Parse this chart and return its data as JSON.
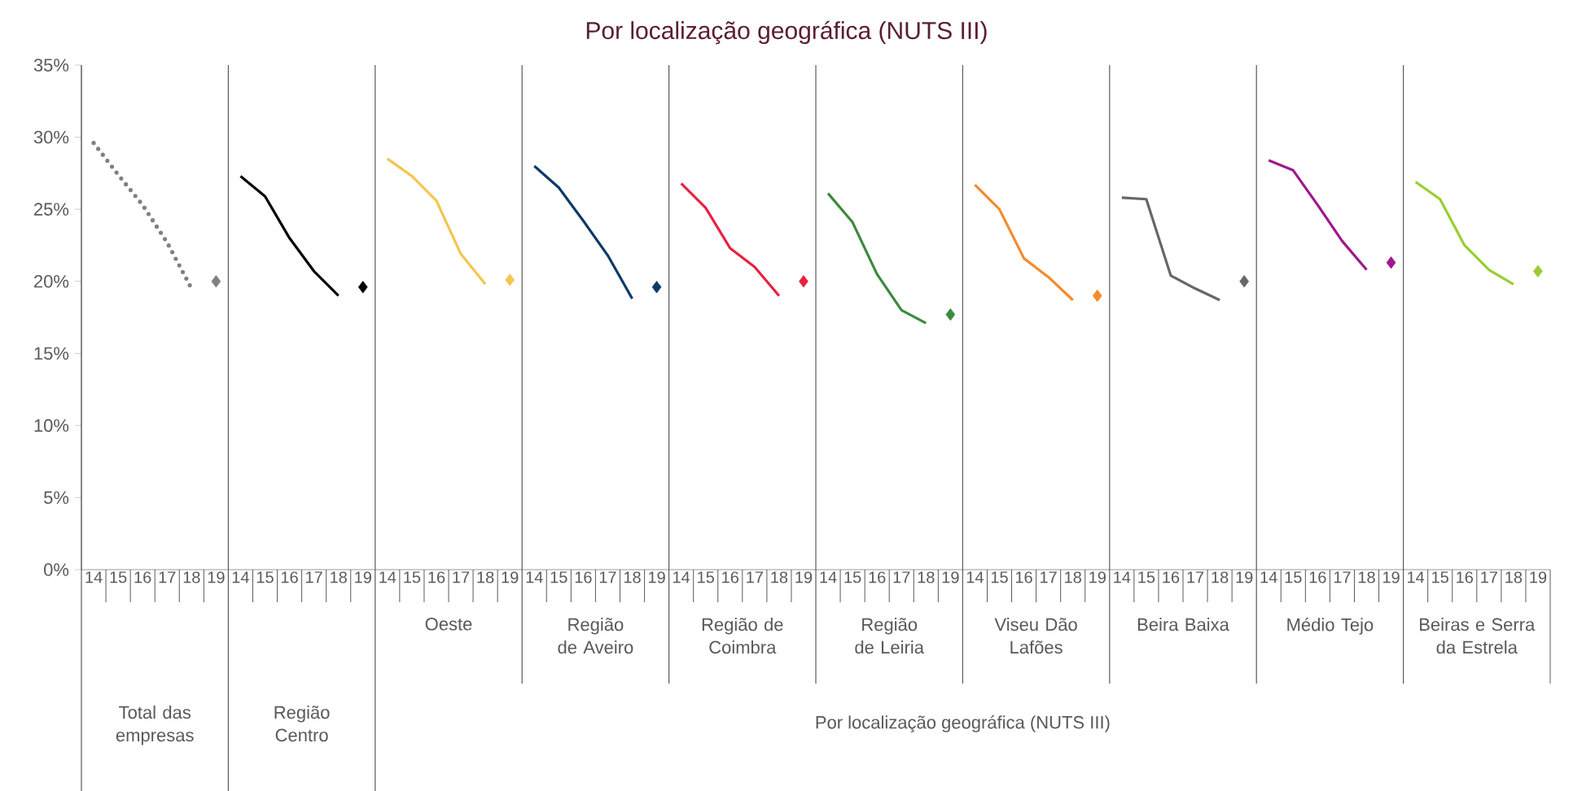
{
  "chart_data": {
    "type": "line",
    "title": "Por localização geográfica (NUTS III)",
    "categories": [
      "14",
      "15",
      "16",
      "17",
      "18",
      "19",
      "14",
      "15",
      "16",
      "17",
      "18",
      "19",
      "14",
      "15",
      "16",
      "17",
      "18",
      "19",
      "14",
      "15",
      "16",
      "17",
      "18",
      "19",
      "14",
      "15",
      "16",
      "17",
      "18",
      "19",
      "14",
      "15",
      "16",
      "17",
      "18",
      "19",
      "14",
      "15",
      "16",
      "17",
      "18",
      "19",
      "14",
      "15",
      "16",
      "17",
      "18",
      "19",
      "14",
      "15",
      "16",
      "17",
      "18",
      "19",
      "14",
      "15",
      "16",
      "17",
      "18",
      "19"
    ],
    "ylim": [
      0,
      35
    ],
    "yticks": [
      {
        "value": 0,
        "label": "0%"
      },
      {
        "value": 5,
        "label": "5%"
      },
      {
        "value": 10,
        "label": "10%"
      },
      {
        "value": 15,
        "label": "15%"
      },
      {
        "value": 20,
        "label": "20%"
      },
      {
        "value": 25,
        "label": "25%"
      },
      {
        "value": 30,
        "label": "30%"
      },
      {
        "value": 35,
        "label": "35%"
      }
    ],
    "annotations": [
      "Total das empresas",
      "Região Centro",
      "Oeste",
      "Região de Aveiro",
      "Região de Coimbra",
      "Região de Leiria",
      "Viseu Dão Lafões",
      "Beira Baixa",
      "Médio Tejo",
      "Beiras e Serra da Estrela",
      "Por localização geográfica (NUTS III)"
    ],
    "series": [
      {
        "type": "line",
        "line_style": "dotted",
        "color": "#808080",
        "values": [
          29.6,
          27.4,
          25.3,
          22.7,
          19.5,
          null,
          null,
          null,
          null,
          null,
          null,
          null,
          null,
          null,
          null,
          null,
          null,
          null,
          null,
          null,
          null,
          null,
          null,
          null,
          null,
          null,
          null,
          null,
          null,
          null,
          null,
          null,
          null,
          null,
          null,
          null,
          null,
          null,
          null,
          null,
          null,
          null,
          null,
          null,
          null,
          null,
          null,
          null,
          null,
          null,
          null,
          null,
          null,
          null,
          null,
          null,
          null,
          null,
          null,
          null
        ]
      },
      {
        "type": "scatter",
        "marker": "diamond",
        "color": "#808080",
        "values": [
          null,
          null,
          null,
          null,
          null,
          20.0,
          null,
          null,
          null,
          null,
          null,
          null,
          null,
          null,
          null,
          null,
          null,
          null,
          null,
          null,
          null,
          null,
          null,
          null,
          null,
          null,
          null,
          null,
          null,
          null,
          null,
          null,
          null,
          null,
          null,
          null,
          null,
          null,
          null,
          null,
          null,
          null,
          null,
          null,
          null,
          null,
          null,
          null,
          null,
          null,
          null,
          null,
          null,
          null,
          null,
          null,
          null,
          null,
          null,
          null
        ]
      },
      {
        "type": "line",
        "line_style": "solid",
        "color": "#000000",
        "values": [
          null,
          null,
          null,
          null,
          null,
          null,
          27.3,
          25.9,
          23.0,
          20.7,
          19.0,
          null,
          null,
          null,
          null,
          null,
          null,
          null,
          null,
          null,
          null,
          null,
          null,
          null,
          null,
          null,
          null,
          null,
          null,
          null,
          null,
          null,
          null,
          null,
          null,
          null,
          null,
          null,
          null,
          null,
          null,
          null,
          null,
          null,
          null,
          null,
          null,
          null,
          null,
          null,
          null,
          null,
          null,
          null,
          null,
          null,
          null,
          null,
          null,
          null
        ]
      },
      {
        "type": "scatter",
        "marker": "diamond",
        "color": "#000000",
        "values": [
          null,
          null,
          null,
          null,
          null,
          null,
          null,
          null,
          null,
          null,
          null,
          19.6,
          null,
          null,
          null,
          null,
          null,
          null,
          null,
          null,
          null,
          null,
          null,
          null,
          null,
          null,
          null,
          null,
          null,
          null,
          null,
          null,
          null,
          null,
          null,
          null,
          null,
          null,
          null,
          null,
          null,
          null,
          null,
          null,
          null,
          null,
          null,
          null,
          null,
          null,
          null,
          null,
          null,
          null,
          null,
          null,
          null,
          null,
          null,
          null
        ]
      },
      {
        "type": "line",
        "line_style": "solid",
        "color": "#f2c650",
        "values": [
          null,
          null,
          null,
          null,
          null,
          null,
          null,
          null,
          null,
          null,
          null,
          null,
          28.5,
          27.3,
          25.6,
          21.9,
          19.8,
          null,
          null,
          null,
          null,
          null,
          null,
          null,
          null,
          null,
          null,
          null,
          null,
          null,
          null,
          null,
          null,
          null,
          null,
          null,
          null,
          null,
          null,
          null,
          null,
          null,
          null,
          null,
          null,
          null,
          null,
          null,
          null,
          null,
          null,
          null,
          null,
          null,
          null,
          null,
          null,
          null,
          null,
          null
        ]
      },
      {
        "type": "scatter",
        "marker": "diamond",
        "color": "#f2c650",
        "values": [
          null,
          null,
          null,
          null,
          null,
          null,
          null,
          null,
          null,
          null,
          null,
          null,
          null,
          null,
          null,
          null,
          null,
          20.1,
          null,
          null,
          null,
          null,
          null,
          null,
          null,
          null,
          null,
          null,
          null,
          null,
          null,
          null,
          null,
          null,
          null,
          null,
          null,
          null,
          null,
          null,
          null,
          null,
          null,
          null,
          null,
          null,
          null,
          null,
          null,
          null,
          null,
          null,
          null,
          null,
          null,
          null,
          null,
          null,
          null,
          null
        ]
      },
      {
        "type": "line",
        "line_style": "solid",
        "color": "#0e3a68",
        "values": [
          null,
          null,
          null,
          null,
          null,
          null,
          null,
          null,
          null,
          null,
          null,
          null,
          null,
          null,
          null,
          null,
          null,
          null,
          28.0,
          26.5,
          24.2,
          21.8,
          18.8,
          null,
          null,
          null,
          null,
          null,
          null,
          null,
          null,
          null,
          null,
          null,
          null,
          null,
          null,
          null,
          null,
          null,
          null,
          null,
          null,
          null,
          null,
          null,
          null,
          null,
          null,
          null,
          null,
          null,
          null,
          null,
          null,
          null,
          null,
          null,
          null,
          null
        ]
      },
      {
        "type": "scatter",
        "marker": "diamond",
        "color": "#0e3a68",
        "values": [
          null,
          null,
          null,
          null,
          null,
          null,
          null,
          null,
          null,
          null,
          null,
          null,
          null,
          null,
          null,
          null,
          null,
          null,
          null,
          null,
          null,
          null,
          null,
          19.6,
          null,
          null,
          null,
          null,
          null,
          null,
          null,
          null,
          null,
          null,
          null,
          null,
          null,
          null,
          null,
          null,
          null,
          null,
          null,
          null,
          null,
          null,
          null,
          null,
          null,
          null,
          null,
          null,
          null,
          null,
          null,
          null,
          null,
          null,
          null,
          null
        ]
      },
      {
        "type": "line",
        "line_style": "solid",
        "color": "#e8213f",
        "values": [
          null,
          null,
          null,
          null,
          null,
          null,
          null,
          null,
          null,
          null,
          null,
          null,
          null,
          null,
          null,
          null,
          null,
          null,
          null,
          null,
          null,
          null,
          null,
          null,
          26.8,
          25.1,
          22.3,
          21.0,
          19.0,
          null,
          null,
          null,
          null,
          null,
          null,
          null,
          null,
          null,
          null,
          null,
          null,
          null,
          null,
          null,
          null,
          null,
          null,
          null,
          null,
          null,
          null,
          null,
          null,
          null,
          null,
          null,
          null,
          null,
          null,
          null
        ]
      },
      {
        "type": "scatter",
        "marker": "diamond",
        "color": "#e8213f",
        "values": [
          null,
          null,
          null,
          null,
          null,
          null,
          null,
          null,
          null,
          null,
          null,
          null,
          null,
          null,
          null,
          null,
          null,
          null,
          null,
          null,
          null,
          null,
          null,
          null,
          null,
          null,
          null,
          null,
          null,
          20.0,
          null,
          null,
          null,
          null,
          null,
          null,
          null,
          null,
          null,
          null,
          null,
          null,
          null,
          null,
          null,
          null,
          null,
          null,
          null,
          null,
          null,
          null,
          null,
          null,
          null,
          null,
          null,
          null,
          null,
          null
        ]
      },
      {
        "type": "line",
        "line_style": "solid",
        "color": "#3c8a3c",
        "values": [
          null,
          null,
          null,
          null,
          null,
          null,
          null,
          null,
          null,
          null,
          null,
          null,
          null,
          null,
          null,
          null,
          null,
          null,
          null,
          null,
          null,
          null,
          null,
          null,
          null,
          null,
          null,
          null,
          null,
          null,
          26.1,
          24.1,
          20.5,
          18.0,
          17.1,
          null,
          null,
          null,
          null,
          null,
          null,
          null,
          null,
          null,
          null,
          null,
          null,
          null,
          null,
          null,
          null,
          null,
          null,
          null,
          null,
          null,
          null,
          null,
          null,
          null
        ]
      },
      {
        "type": "scatter",
        "marker": "diamond",
        "color": "#3c8a3c",
        "values": [
          null,
          null,
          null,
          null,
          null,
          null,
          null,
          null,
          null,
          null,
          null,
          null,
          null,
          null,
          null,
          null,
          null,
          null,
          null,
          null,
          null,
          null,
          null,
          null,
          null,
          null,
          null,
          null,
          null,
          null,
          null,
          null,
          null,
          null,
          null,
          17.7,
          null,
          null,
          null,
          null,
          null,
          null,
          null,
          null,
          null,
          null,
          null,
          null,
          null,
          null,
          null,
          null,
          null,
          null,
          null,
          null,
          null,
          null,
          null,
          null
        ]
      },
      {
        "type": "line",
        "line_style": "solid",
        "color": "#f58a2c",
        "values": [
          null,
          null,
          null,
          null,
          null,
          null,
          null,
          null,
          null,
          null,
          null,
          null,
          null,
          null,
          null,
          null,
          null,
          null,
          null,
          null,
          null,
          null,
          null,
          null,
          null,
          null,
          null,
          null,
          null,
          null,
          null,
          null,
          null,
          null,
          null,
          null,
          26.7,
          25.0,
          21.6,
          20.3,
          18.7,
          null,
          null,
          null,
          null,
          null,
          null,
          null,
          null,
          null,
          null,
          null,
          null,
          null,
          null,
          null,
          null,
          null,
          null,
          null
        ]
      },
      {
        "type": "scatter",
        "marker": "diamond",
        "color": "#f58a2c",
        "values": [
          null,
          null,
          null,
          null,
          null,
          null,
          null,
          null,
          null,
          null,
          null,
          null,
          null,
          null,
          null,
          null,
          null,
          null,
          null,
          null,
          null,
          null,
          null,
          null,
          null,
          null,
          null,
          null,
          null,
          null,
          null,
          null,
          null,
          null,
          null,
          null,
          null,
          null,
          null,
          null,
          null,
          19.0,
          null,
          null,
          null,
          null,
          null,
          null,
          null,
          null,
          null,
          null,
          null,
          null,
          null,
          null,
          null,
          null,
          null,
          null
        ]
      },
      {
        "type": "line",
        "line_style": "solid",
        "color": "#666666",
        "values": [
          null,
          null,
          null,
          null,
          null,
          null,
          null,
          null,
          null,
          null,
          null,
          null,
          null,
          null,
          null,
          null,
          null,
          null,
          null,
          null,
          null,
          null,
          null,
          null,
          null,
          null,
          null,
          null,
          null,
          null,
          null,
          null,
          null,
          null,
          null,
          null,
          null,
          null,
          null,
          null,
          null,
          null,
          25.8,
          25.7,
          20.4,
          19.5,
          18.7,
          null,
          null,
          null,
          null,
          null,
          null,
          null,
          null,
          null,
          null,
          null,
          null,
          null
        ]
      },
      {
        "type": "scatter",
        "marker": "diamond",
        "color": "#666666",
        "values": [
          null,
          null,
          null,
          null,
          null,
          null,
          null,
          null,
          null,
          null,
          null,
          null,
          null,
          null,
          null,
          null,
          null,
          null,
          null,
          null,
          null,
          null,
          null,
          null,
          null,
          null,
          null,
          null,
          null,
          null,
          null,
          null,
          null,
          null,
          null,
          null,
          null,
          null,
          null,
          null,
          null,
          null,
          null,
          null,
          null,
          null,
          null,
          20.0,
          null,
          null,
          null,
          null,
          null,
          null,
          null,
          null,
          null,
          null,
          null,
          null
        ]
      },
      {
        "type": "line",
        "line_style": "solid",
        "color": "#a0188c",
        "values": [
          null,
          null,
          null,
          null,
          null,
          null,
          null,
          null,
          null,
          null,
          null,
          null,
          null,
          null,
          null,
          null,
          null,
          null,
          null,
          null,
          null,
          null,
          null,
          null,
          null,
          null,
          null,
          null,
          null,
          null,
          null,
          null,
          null,
          null,
          null,
          null,
          null,
          null,
          null,
          null,
          null,
          null,
          null,
          null,
          null,
          null,
          null,
          null,
          28.4,
          27.7,
          25.3,
          22.8,
          20.8,
          null,
          null,
          null,
          null,
          null,
          null,
          null
        ]
      },
      {
        "type": "scatter",
        "marker": "diamond",
        "color": "#a0188c",
        "values": [
          null,
          null,
          null,
          null,
          null,
          null,
          null,
          null,
          null,
          null,
          null,
          null,
          null,
          null,
          null,
          null,
          null,
          null,
          null,
          null,
          null,
          null,
          null,
          null,
          null,
          null,
          null,
          null,
          null,
          null,
          null,
          null,
          null,
          null,
          null,
          null,
          null,
          null,
          null,
          null,
          null,
          null,
          null,
          null,
          null,
          null,
          null,
          null,
          null,
          null,
          null,
          null,
          null,
          21.3,
          null,
          null,
          null,
          null,
          null,
          null
        ]
      },
      {
        "type": "line",
        "line_style": "solid",
        "color": "#9acd32",
        "values": [
          null,
          null,
          null,
          null,
          null,
          null,
          null,
          null,
          null,
          null,
          null,
          null,
          null,
          null,
          null,
          null,
          null,
          null,
          null,
          null,
          null,
          null,
          null,
          null,
          null,
          null,
          null,
          null,
          null,
          null,
          null,
          null,
          null,
          null,
          null,
          null,
          null,
          null,
          null,
          null,
          null,
          null,
          null,
          null,
          null,
          null,
          null,
          null,
          null,
          null,
          null,
          null,
          null,
          null,
          26.9,
          25.7,
          22.5,
          20.8,
          19.8,
          null
        ]
      },
      {
        "type": "scatter",
        "marker": "diamond",
        "color": "#9acd32",
        "values": [
          null,
          null,
          null,
          null,
          null,
          null,
          null,
          null,
          null,
          null,
          null,
          null,
          null,
          null,
          null,
          null,
          null,
          null,
          null,
          null,
          null,
          null,
          null,
          null,
          null,
          null,
          null,
          null,
          null,
          null,
          null,
          null,
          null,
          null,
          null,
          null,
          null,
          null,
          null,
          null,
          null,
          null,
          null,
          null,
          null,
          null,
          null,
          null,
          null,
          null,
          null,
          null,
          null,
          null,
          null,
          null,
          null,
          null,
          null,
          20.7
        ]
      }
    ]
  }
}
